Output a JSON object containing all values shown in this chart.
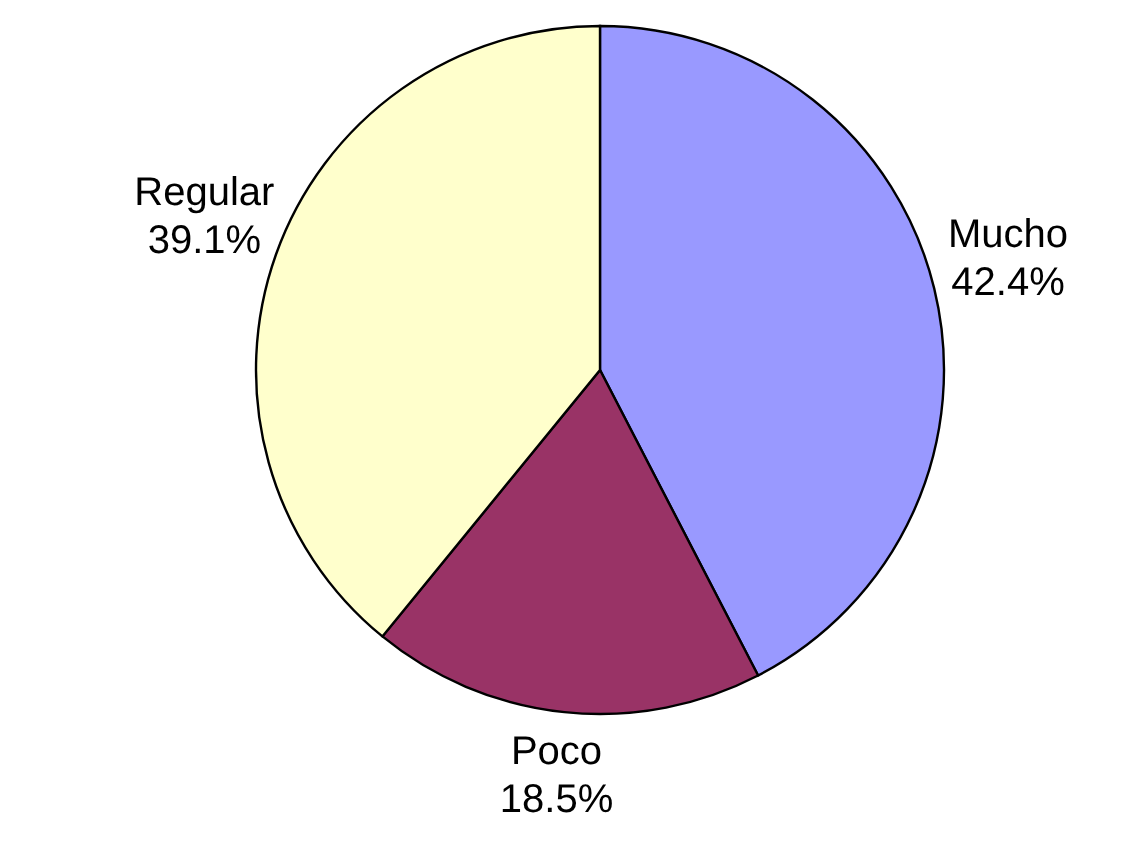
{
  "chart_data": {
    "type": "pie",
    "categories": [
      "Mucho",
      "Poco",
      "Regular"
    ],
    "values": [
      42.4,
      18.5,
      39.1
    ],
    "colors": [
      "#9999ff",
      "#993366",
      "#ffffcc"
    ],
    "value_labels": [
      "42.4%",
      "18.5%",
      "39.1%"
    ],
    "legend": false
  }
}
